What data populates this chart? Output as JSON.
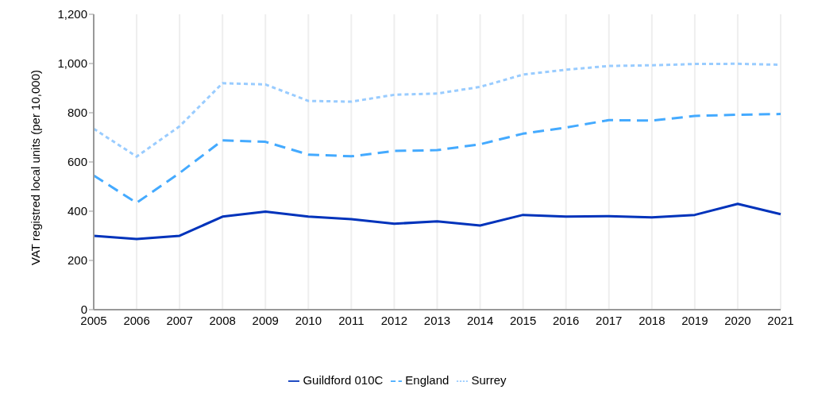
{
  "chart_data": {
    "type": "line",
    "ylabel": "VAT registred local units (per 10,000)",
    "categories": [
      "2005",
      "2006",
      "2007",
      "2008",
      "2009",
      "2010",
      "2011",
      "2012",
      "2013",
      "2014",
      "2015",
      "2016",
      "2017",
      "2018",
      "2019",
      "2020",
      "2021"
    ],
    "series": [
      {
        "name": "Guildford 010C",
        "color": "#0033bb",
        "line_style": "solid",
        "values": [
          300,
          287,
          300,
          378,
          398,
          378,
          368,
          349,
          359,
          342,
          385,
          378,
          380,
          375,
          385,
          430,
          388
        ]
      },
      {
        "name": "England",
        "color": "#44aaff",
        "line_style": "dashed",
        "values": [
          545,
          434,
          555,
          688,
          682,
          630,
          623,
          645,
          648,
          672,
          715,
          740,
          770,
          768,
          787,
          792,
          795
        ]
      },
      {
        "name": "Surrey",
        "color": "#99ccff",
        "line_style": "dotted",
        "values": [
          735,
          622,
          745,
          920,
          915,
          848,
          845,
          873,
          878,
          905,
          955,
          975,
          990,
          993,
          998,
          999,
          995
        ]
      }
    ],
    "ylim": [
      0,
      1200
    ],
    "yticks": [
      0,
      200,
      400,
      600,
      800,
      {
        "value": 1000,
        "label": "1,000"
      },
      {
        "value": 1200,
        "label": "1,200"
      }
    ],
    "grid": "x",
    "legend": "bottom",
    "marker": "none"
  }
}
